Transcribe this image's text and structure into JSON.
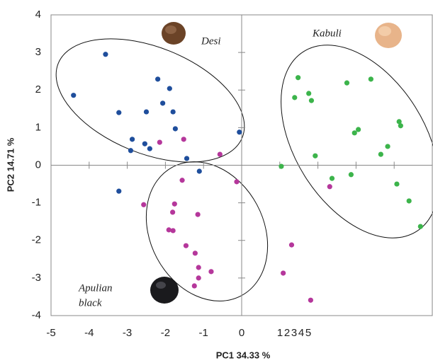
{
  "chart_data": {
    "type": "scatter",
    "x_label": "PC1 34.33 %",
    "y_label": "PC2 14.71 %",
    "annotations": [
      "Desi",
      "Kabuli",
      "Apulian",
      "black"
    ],
    "xlim": [
      -5,
      5
    ],
    "ylim": [
      -4,
      4
    ],
    "xticks": [
      -5,
      -4,
      -3,
      -2,
      -1,
      0,
      1,
      2,
      3,
      4,
      5
    ],
    "yticks": [
      -4,
      -3,
      -2,
      -1,
      0,
      1,
      2,
      3,
      4
    ],
    "series": [
      {
        "color": "#1f4e9c",
        "x": [
          -4.41,
          -3.57,
          -3.22,
          -2.2,
          -1.89,
          -2.5,
          -2.07,
          -1.8,
          -2.87,
          -1.74,
          -2.54,
          -2.41,
          -2.91,
          -1.44,
          -0.06,
          -1.11,
          -3.22
        ],
        "values": [
          1.86,
          2.95,
          1.4,
          2.29,
          2.04,
          1.42,
          1.65,
          1.42,
          0.69,
          0.97,
          0.57,
          0.44,
          0.39,
          0.18,
          0.88,
          -0.16,
          -0.69
        ]
      },
      {
        "color": "#3cb44b",
        "x": [
          1.48,
          2.76,
          3.39,
          1.76,
          1.39,
          1.83,
          4.13,
          4.17,
          3.06,
          2.96,
          3.83,
          3.65,
          1.93,
          1.04,
          2.37,
          2.87,
          4.07,
          4.39,
          4.69
        ],
        "values": [
          2.33,
          2.19,
          2.29,
          1.91,
          1.8,
          1.72,
          1.16,
          1.05,
          0.95,
          0.86,
          0.5,
          0.29,
          0.25,
          -0.03,
          -0.35,
          -0.25,
          -0.5,
          -0.95,
          -1.63
        ]
      },
      {
        "color": "#b5379b",
        "x": [
          -1.52,
          -2.15,
          -0.57,
          -0.13,
          -1.56,
          2.31,
          -2.57,
          -1.76,
          -1.81,
          -1.15,
          -1.91,
          -1.8,
          -1.46,
          1.31,
          -1.22,
          -1.13,
          -0.8,
          1.09,
          -1.13,
          -1.24,
          1.81
        ],
        "values": [
          0.69,
          0.61,
          0.29,
          -0.44,
          -0.4,
          -0.57,
          -1.05,
          -1.03,
          -1.25,
          -1.31,
          -1.72,
          -1.74,
          -2.14,
          -2.12,
          -2.34,
          -2.72,
          -2.83,
          -2.87,
          -3.0,
          -3.21,
          -3.59
        ]
      }
    ]
  }
}
